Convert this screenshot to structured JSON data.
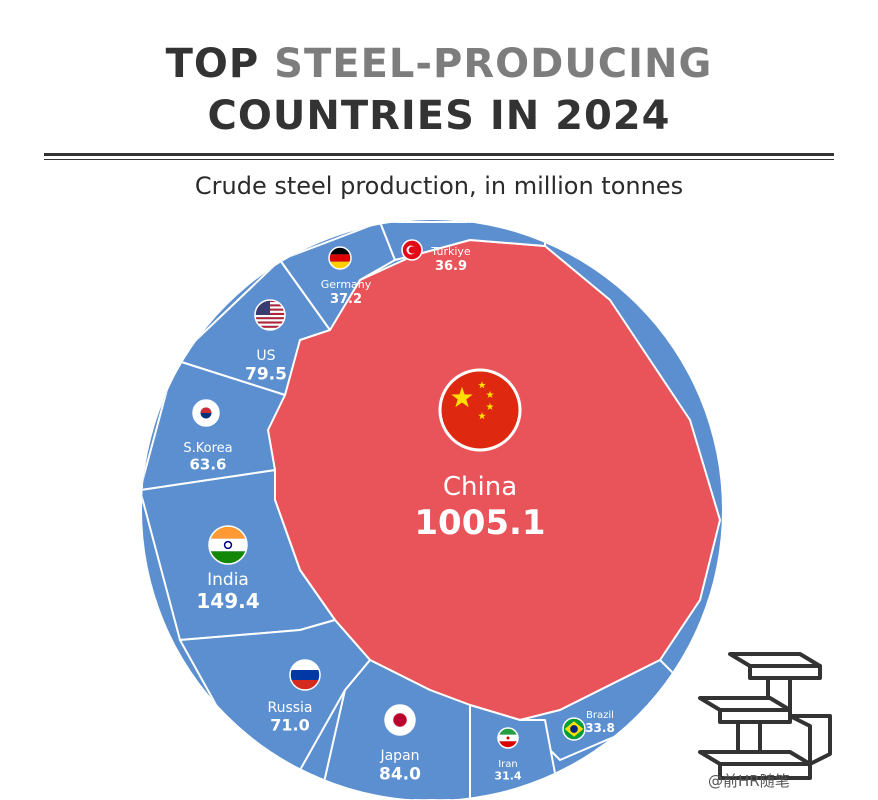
{
  "header": {
    "title_line1_a": "TOP ",
    "title_line1_b": "STEEL-PRODUCING",
    "title_line2": "COUNTRIES IN 2024",
    "subtitle": "Crude steel production, in million tonnes"
  },
  "watermark": "@前HR随笔",
  "chart_data": {
    "type": "voronoi-treemap",
    "unit": "million tonnes",
    "colors": {
      "china": "#e9545a",
      "others": "#5b8fd0",
      "border": "#ffffff"
    },
    "series": [
      {
        "label": "China",
        "value": "1005.1",
        "flag": "china-flag-icon"
      },
      {
        "label": "India",
        "value": "149.4",
        "flag": "india-flag-icon"
      },
      {
        "label": "Japan",
        "value": "84.0",
        "flag": "japan-flag-icon"
      },
      {
        "label": "US",
        "value": "79.5",
        "flag": "us-flag-icon"
      },
      {
        "label": "Russia",
        "value": "71.0",
        "flag": "russia-flag-icon"
      },
      {
        "label": "S.Korea",
        "value": "63.6",
        "flag": "south-korea-flag-icon"
      },
      {
        "label": "Germany",
        "value": "37.2",
        "flag": "germany-flag-icon"
      },
      {
        "label": "Türkiye",
        "value": "36.9",
        "flag": "turkey-flag-icon"
      },
      {
        "label": "Brazil",
        "value": "33.8",
        "flag": "brazil-flag-icon"
      },
      {
        "label": "Iran",
        "value": "31.4",
        "flag": "iran-flag-icon"
      }
    ]
  },
  "logo_icon": "steel-beams-icon"
}
